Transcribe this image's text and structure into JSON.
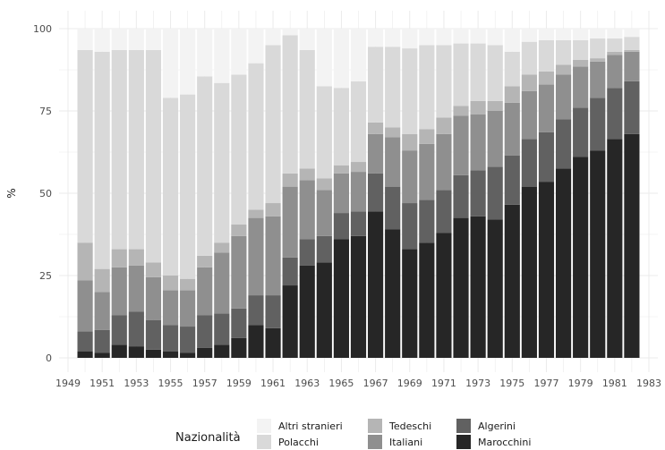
{
  "chart_data": {
    "type": "bar",
    "stacked": true,
    "ylabel": "%",
    "ylim": [
      0,
      100
    ],
    "yticks": [
      "0",
      "25",
      "50",
      "75",
      "100"
    ],
    "xlim": [
      1949,
      1983
    ],
    "xticks": [
      "1949",
      "1951",
      "1953",
      "1955",
      "1957",
      "1959",
      "1961",
      "1963",
      "1965",
      "1967",
      "1969",
      "1971",
      "1973",
      "1975",
      "1977",
      "1979",
      "1981",
      "1983"
    ],
    "grid": true,
    "legend_position": "bottom",
    "legend_title": "Nazionalità",
    "categories": [
      1950,
      1951,
      1952,
      1953,
      1954,
      1955,
      1956,
      1957,
      1958,
      1959,
      1960,
      1961,
      1962,
      1963,
      1964,
      1965,
      1966,
      1967,
      1968,
      1969,
      1970,
      1971,
      1972,
      1973,
      1974,
      1975,
      1976,
      1977,
      1978,
      1979,
      1980,
      1981,
      1982
    ],
    "series": [
      {
        "name": "Marocchini",
        "color": "#262626",
        "values": [
          2,
          1.5,
          4,
          3.5,
          2.5,
          2,
          1.5,
          3,
          4,
          6,
          10,
          9,
          22,
          28,
          29,
          36,
          37,
          44.5,
          39,
          33,
          35,
          38,
          42.5,
          43,
          42,
          46.5,
          52,
          53.5,
          57.5,
          61,
          63,
          66.5,
          68
        ]
      },
      {
        "name": "Algerini",
        "color": "#616161",
        "values": [
          6,
          7,
          9,
          10.5,
          9,
          8,
          8,
          10,
          9.5,
          9,
          9,
          10,
          8.5,
          8,
          8,
          8,
          7.5,
          11.5,
          13,
          14,
          13,
          13,
          13,
          14,
          16,
          15,
          14.5,
          15,
          15,
          15,
          16,
          15.5,
          16
        ]
      },
      {
        "name": "Italiani",
        "color": "#8f8f8f",
        "values": [
          15.5,
          11.5,
          14.5,
          14,
          13,
          10.5,
          11,
          14.5,
          18.5,
          22,
          23.5,
          24,
          21.5,
          18,
          14,
          12,
          12,
          12,
          15,
          16,
          17,
          17,
          18,
          17,
          17,
          16,
          14.5,
          14.5,
          13.5,
          12.5,
          11,
          10,
          9
        ]
      },
      {
        "name": "Tedeschi",
        "color": "#b5b5b5",
        "values": [
          11.5,
          7,
          5.5,
          5,
          4.5,
          4.5,
          3.5,
          3.5,
          3,
          3.5,
          2.5,
          4,
          4,
          3.5,
          3.5,
          2.5,
          3,
          3.5,
          3,
          5,
          4.5,
          5,
          3,
          4,
          3,
          5,
          5,
          4,
          3,
          2,
          1,
          1,
          0.5
        ]
      },
      {
        "name": "Polacchi",
        "color": "#d9d9d9",
        "values": [
          58.5,
          66,
          60.5,
          60.5,
          64.5,
          54,
          56,
          54.5,
          48.5,
          45.5,
          44.5,
          48,
          42,
          36,
          28,
          23.5,
          24.5,
          23,
          24.5,
          26,
          25.5,
          22,
          19,
          17.5,
          17,
          10.5,
          10,
          9.5,
          7.5,
          6,
          6,
          4,
          4
        ]
      },
      {
        "name": "Altri stranieri",
        "color": "#f3f3f3",
        "values": [
          6.5,
          7,
          6.5,
          6.5,
          6.5,
          21,
          20,
          14.5,
          16.5,
          14,
          10.5,
          5,
          2,
          6.5,
          17.5,
          18,
          16,
          5.5,
          5.5,
          6,
          5,
          5,
          4.5,
          4.5,
          5,
          7,
          4,
          3.5,
          3.5,
          3.5,
          3,
          3,
          2.5
        ]
      }
    ],
    "legend_layout": [
      [
        "Altri stranieri",
        "Polacchi"
      ],
      [
        "Tedeschi",
        "Italiani"
      ],
      [
        "Algerini",
        "Marocchini"
      ]
    ]
  }
}
